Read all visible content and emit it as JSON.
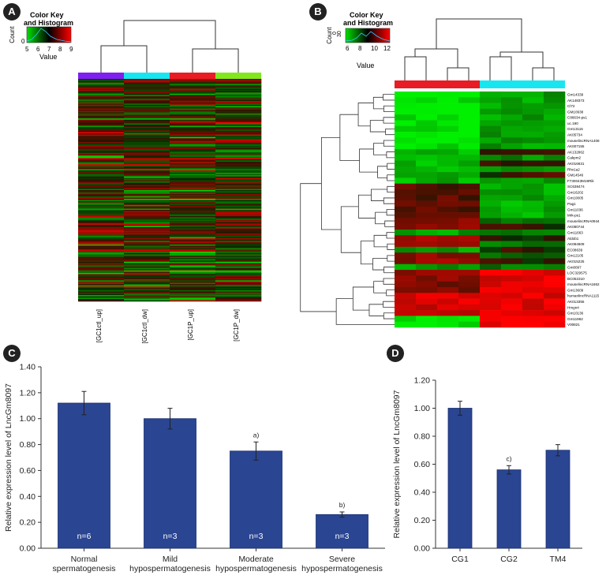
{
  "panels": {
    "a": "A",
    "b": "B",
    "c": "C",
    "d": "D"
  },
  "colors": {
    "bar": "#2a4592",
    "bar_edge": "#1a2f6e",
    "axis": "#333333",
    "heat_low": "#00c800",
    "heat_mid": "#000000",
    "heat_high": "#e80000",
    "group1": "#7f1ef0",
    "group2": "#17e6f0",
    "group3": "#e81c24",
    "group4": "#82e81e"
  },
  "heatmap_a": {
    "key_title": "Color Key\nand Histogram",
    "key_title_lines": [
      "Color Key",
      "and Histogram"
    ],
    "count_label": "Count",
    "count_tick": "0",
    "value_label": "Value",
    "ticks": [
      "5",
      "6",
      "7",
      "8",
      "9"
    ],
    "columns": [
      "[GC1ctl_up]",
      "[GC1ctl_dw]",
      "[GC1P_up]",
      "[GC1P_dw]"
    ]
  },
  "heatmap_b": {
    "key_title_lines": [
      "Color Key",
      "and Histogram"
    ],
    "count_label": "Count",
    "count_ticks": [
      "0",
      "30"
    ],
    "value_label": "Value",
    "ticks": [
      "6",
      "8",
      "10",
      "12"
    ],
    "genes": [
      "Gm14339",
      "AK148373",
      "Cl72",
      "GM10938",
      "C86634-ps1",
      "uc.190",
      "Gm13115",
      "AK05734",
      "mouselincRNA1408",
      "AK007155",
      "AK132862",
      "Cakpm2",
      "AK016631",
      "Rhx1a2",
      "GM14546",
      "F730043M19Rik",
      "SC638474",
      "Gm16202",
      "Gm10005",
      "Pag1",
      "Gm11036",
      "Mrk-ps1",
      "mouselincRNA0944",
      "AK080744",
      "Gm11663",
      "Aldob1",
      "AK084609",
      "EC08639",
      "Gm12105",
      "AK015225",
      "Gm8097",
      "LOC329575",
      "BC052310",
      "mouselincRNA1662",
      "Gm13609",
      "humanlincRNA1115",
      "AK013355",
      "Hmgn4",
      "Gm10136",
      "Gm11962",
      "V00821"
    ]
  },
  "chart_data": [
    {
      "type": "bar",
      "categories": [
        "Normal spermatogenesis",
        "Mild hypospermatogenesis",
        "Moderate hypospermatogenesis",
        "Severe hypospermatogenesis"
      ],
      "category_lines": [
        [
          "Normal",
          "spermatogenesis"
        ],
        [
          "Mild",
          "hypospermatogenesis"
        ],
        [
          "Moderate",
          "hypospermatogenesis"
        ],
        [
          "Severe",
          "hypospermatogenesis"
        ]
      ],
      "values": [
        1.12,
        1.0,
        0.75,
        0.26
      ],
      "errors": [
        0.09,
        0.08,
        0.07,
        0.02
      ],
      "sample_labels": [
        "n=6",
        "n=3",
        "n=3",
        "n=3"
      ],
      "annotations": [
        "",
        "",
        "a)",
        "b)"
      ],
      "ylabel": "Relative expression level of LncGm8097",
      "xlabel": "",
      "ylim": [
        0,
        1.4
      ],
      "yticks": [
        "0.00",
        "0.20",
        "0.40",
        "0.60",
        "0.80",
        "1.00",
        "1.20",
        "1.40"
      ],
      "grid": false
    },
    {
      "type": "bar",
      "categories": [
        "CG1",
        "CG2",
        "TM4"
      ],
      "values": [
        1.0,
        0.56,
        0.7
      ],
      "errors": [
        0.05,
        0.03,
        0.04
      ],
      "annotations": [
        "",
        "c)",
        ""
      ],
      "ylabel": "Relative expression level of LncGm8097",
      "xlabel": "",
      "ylim": [
        0,
        1.2
      ],
      "yticks": [
        "0.00",
        "0.20",
        "0.40",
        "0.60",
        "0.80",
        "1.00",
        "1.20"
      ],
      "grid": false
    }
  ]
}
